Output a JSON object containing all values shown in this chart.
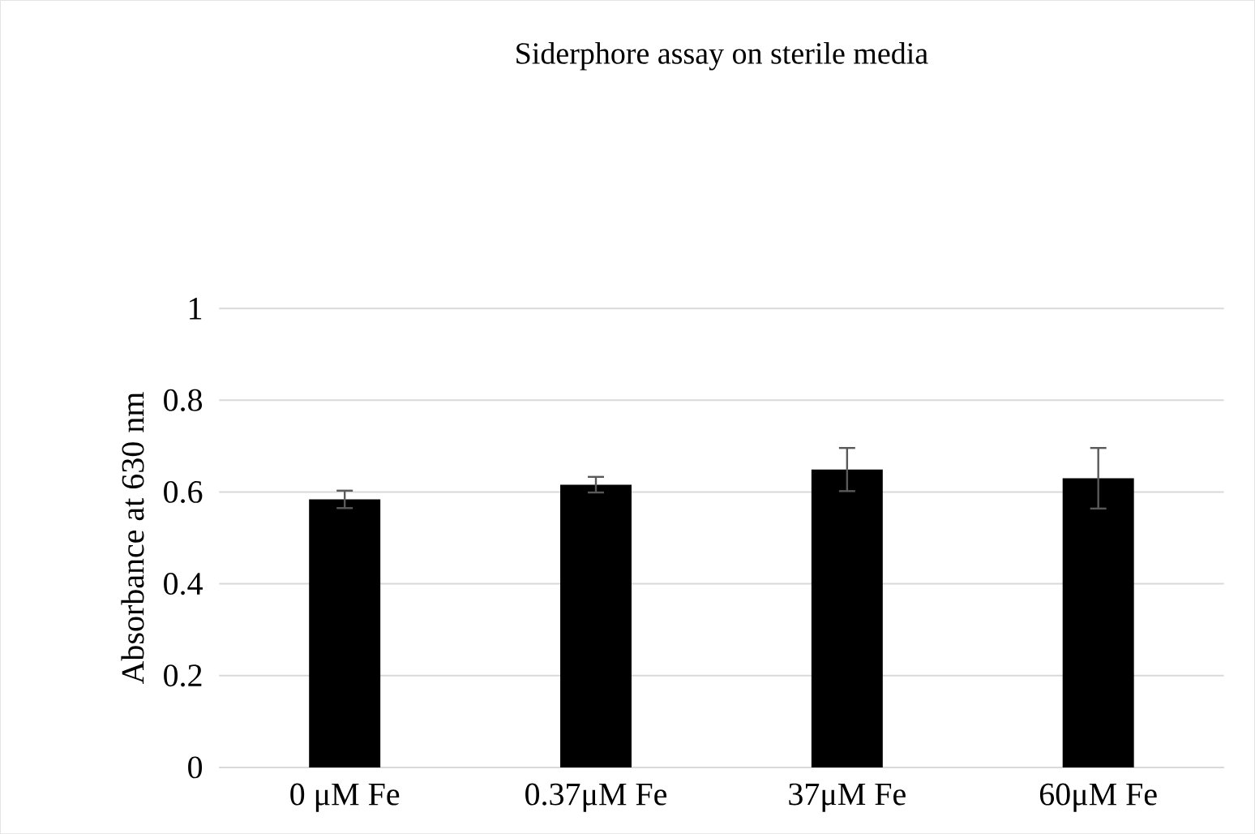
{
  "chart_data": {
    "type": "bar",
    "title": "Siderphore assay on sterile media",
    "ylabel": "Absorbance at 630 nm",
    "categories": [
      "0 μM Fe",
      "0.37μM Fe",
      "37μM Fe",
      "60μM Fe"
    ],
    "values": [
      0.584,
      0.616,
      0.649,
      0.63
    ],
    "errors": [
      0.019,
      0.017,
      0.047,
      0.066
    ],
    "color": "#000000",
    "ylim": [
      0,
      1
    ],
    "yticks": [
      0,
      0.2,
      0.4,
      0.6,
      0.8,
      1
    ],
    "grid": "y"
  }
}
